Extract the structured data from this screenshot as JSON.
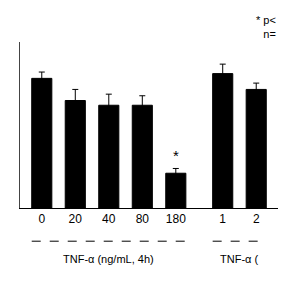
{
  "chart_data": {
    "type": "bar",
    "categories": [
      "0",
      "20",
      "40",
      "80",
      "180",
      "1",
      "2"
    ],
    "values": [
      0.82,
      0.68,
      0.65,
      0.65,
      0.22,
      0.85,
      0.75
    ],
    "errors": [
      0.04,
      0.07,
      0.07,
      0.06,
      0.03,
      0.06,
      0.04
    ],
    "groups": [
      {
        "label": "TNF-α (ng/mL, 4h)",
        "categories": [
          "0",
          "20",
          "40",
          "80",
          "180"
        ]
      },
      {
        "label": "TNF-α (",
        "categories": [
          "1",
          "2"
        ]
      }
    ],
    "marks": [
      {
        "category": "180",
        "text": "*"
      }
    ],
    "annotations": [
      {
        "lines": [
          "* p<",
          "n="
        ]
      }
    ],
    "color": "#000000",
    "ylim": [
      0,
      1.05
    ],
    "grid": false,
    "tick_labels": "x"
  }
}
